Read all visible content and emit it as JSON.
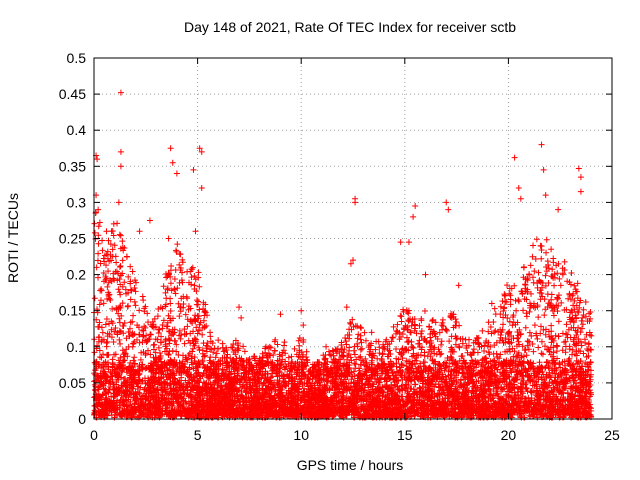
{
  "chart_data": {
    "type": "scatter",
    "title": "Day 148 of 2021, Rate Of TEC Index for receiver sctb",
    "xlabel": "GPS time / hours",
    "ylabel": "ROTI / TECUs",
    "xlim": [
      0,
      25
    ],
    "ylim": [
      0,
      0.5
    ],
    "xticks": [
      "0",
      "5",
      "10",
      "15",
      "20",
      "25"
    ],
    "yticks": [
      "0",
      "0.05",
      "0.1",
      "0.15",
      "0.2",
      "0.25",
      "0.3",
      "0.35",
      "0.4",
      "0.45",
      "0.5"
    ],
    "grid": true,
    "marker": "plus",
    "series_color": "#ff0000",
    "outliers": [
      [
        1.3,
        0.452
      ],
      [
        1.3,
        0.37
      ],
      [
        1.3,
        0.35
      ],
      [
        0.1,
        0.365
      ],
      [
        0.15,
        0.36
      ],
      [
        0.1,
        0.31
      ],
      [
        0.2,
        0.29
      ],
      [
        3.7,
        0.375
      ],
      [
        3.8,
        0.355
      ],
      [
        4.0,
        0.34
      ],
      [
        5.1,
        0.375
      ],
      [
        5.2,
        0.37
      ],
      [
        5.2,
        0.32
      ],
      [
        4.8,
        0.345
      ],
      [
        1.2,
        0.3
      ],
      [
        12.6,
        0.305
      ],
      [
        12.6,
        0.3
      ],
      [
        12.5,
        0.22
      ],
      [
        12.4,
        0.215
      ],
      [
        15.5,
        0.295
      ],
      [
        15.4,
        0.28
      ],
      [
        17.0,
        0.3
      ],
      [
        17.1,
        0.29
      ],
      [
        15.2,
        0.245
      ],
      [
        14.8,
        0.245
      ],
      [
        20.3,
        0.362
      ],
      [
        20.5,
        0.32
      ],
      [
        21.6,
        0.38
      ],
      [
        21.7,
        0.345
      ],
      [
        20.6,
        0.305
      ],
      [
        21.8,
        0.31
      ],
      [
        23.4,
        0.347
      ],
      [
        23.5,
        0.335
      ],
      [
        23.5,
        0.315
      ],
      [
        22.4,
        0.29
      ],
      [
        7.0,
        0.155
      ],
      [
        7.1,
        0.14
      ],
      [
        9.0,
        0.145
      ],
      [
        10.0,
        0.15
      ],
      [
        10.1,
        0.13
      ],
      [
        11.2,
        0.1
      ],
      [
        12.2,
        0.155
      ],
      [
        16.0,
        0.2
      ],
      [
        17.6,
        0.185
      ],
      [
        19.2,
        0.16
      ],
      [
        18.1,
        0.11
      ],
      [
        8.3,
        0.1
      ],
      [
        13.4,
        0.12
      ],
      [
        14.0,
        0.1
      ],
      [
        2.7,
        0.275
      ],
      [
        2.2,
        0.26
      ],
      [
        0.6,
        0.26
      ],
      [
        0.9,
        0.235
      ],
      [
        3.6,
        0.25
      ],
      [
        4.9,
        0.26
      ]
    ],
    "density_profile": [
      [
        0.0,
        0.3
      ],
      [
        0.5,
        0.25
      ],
      [
        1.0,
        0.27
      ],
      [
        1.5,
        0.24
      ],
      [
        2.0,
        0.2
      ],
      [
        2.5,
        0.16
      ],
      [
        3.0,
        0.14
      ],
      [
        3.5,
        0.2
      ],
      [
        4.0,
        0.24
      ],
      [
        4.5,
        0.2
      ],
      [
        5.0,
        0.21
      ],
      [
        5.5,
        0.14
      ],
      [
        6.0,
        0.1
      ],
      [
        6.5,
        0.09
      ],
      [
        7.0,
        0.11
      ],
      [
        7.5,
        0.09
      ],
      [
        8.0,
        0.08
      ],
      [
        8.5,
        0.1
      ],
      [
        9.0,
        0.11
      ],
      [
        9.5,
        0.08
      ],
      [
        10.0,
        0.12
      ],
      [
        10.5,
        0.07
      ],
      [
        11.0,
        0.08
      ],
      [
        11.5,
        0.09
      ],
      [
        12.0,
        0.1
      ],
      [
        12.5,
        0.14
      ],
      [
        13.0,
        0.12
      ],
      [
        13.5,
        0.11
      ],
      [
        14.0,
        0.1
      ],
      [
        14.5,
        0.13
      ],
      [
        15.0,
        0.16
      ],
      [
        15.5,
        0.14
      ],
      [
        16.0,
        0.15
      ],
      [
        16.5,
        0.13
      ],
      [
        17.0,
        0.15
      ],
      [
        17.5,
        0.14
      ],
      [
        18.0,
        0.1
      ],
      [
        18.5,
        0.11
      ],
      [
        19.0,
        0.13
      ],
      [
        19.5,
        0.15
      ],
      [
        20.0,
        0.18
      ],
      [
        20.5,
        0.2
      ],
      [
        21.0,
        0.22
      ],
      [
        21.5,
        0.25
      ],
      [
        22.0,
        0.24
      ],
      [
        22.5,
        0.22
      ],
      [
        23.0,
        0.2
      ],
      [
        23.5,
        0.18
      ],
      [
        24.0,
        0.14
      ]
    ],
    "time_range": [
      0,
      24
    ]
  }
}
